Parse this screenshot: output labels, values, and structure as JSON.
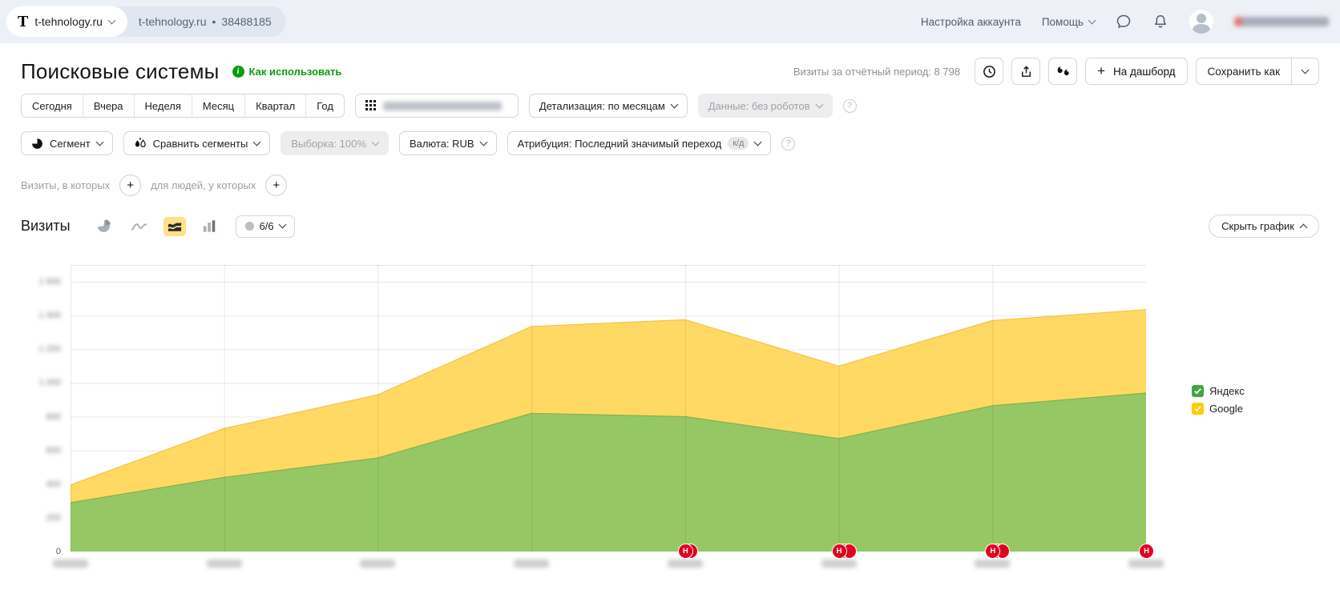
{
  "header": {
    "logo_letter": "T",
    "counter_name": "t-tehnology.ru",
    "counter_domain": "t-tehnology.ru",
    "separator": "•",
    "counter_id": "38488185",
    "account_settings": "Настройка аккаунта",
    "help": "Помощь",
    "user_email_blurred": true
  },
  "toolbar": {
    "title": "Поисковые системы",
    "how_to_use": "Как использовать",
    "visits_summary": "Визиты за отчётный период: 8 798",
    "to_dashboard": "На дашборд",
    "save_as": "Сохранить как"
  },
  "filters": {
    "periods": [
      "Сегодня",
      "Вчера",
      "Неделя",
      "Месяц",
      "Квартал",
      "Год"
    ],
    "date_range_blurred": true,
    "detalization": "Детализация: по месяцам",
    "data_mode": "Данные: без роботов",
    "segment": "Сегмент",
    "compare_segments": "Сравнить сегменты",
    "sampling": "Выборка: 100%",
    "currency": "Валюта: RUB",
    "attribution": "Атрибуция: Последний значимый переход",
    "attribution_badge": "к/д"
  },
  "query_builder": {
    "visits_label": "Визиты, в которых",
    "people_label": "для людей, у которых"
  },
  "chart_section": {
    "metric_title": "Визиты",
    "series_selector": "6/6",
    "hide_chart": "Скрыть график"
  },
  "icons": {
    "plus": "+",
    "question": "?"
  },
  "chart_data": {
    "type": "area",
    "stacked": true,
    "title": "Визиты",
    "num_points": 8,
    "x_labels_blurred": true,
    "series": [
      {
        "name": "Яндекс",
        "area_color": "#95c864",
        "edge_color": "#7fb24f",
        "legend_color": "#42a742",
        "values": [
          290,
          440,
          555,
          820,
          800,
          670,
          865,
          940
        ]
      },
      {
        "name": "Google",
        "area_color": "#ffd963",
        "edge_color": "#f0c54a",
        "legend_color": "#ffcc00",
        "values": [
          105,
          290,
          375,
          515,
          575,
          430,
          505,
          495
        ]
      }
    ],
    "ylim": [
      0,
      1600
    ],
    "ytick_step": 200,
    "grid": true,
    "legend_position": "right",
    "marker_letter": "H",
    "markers": [
      {
        "point_index": 4,
        "circles": 2
      },
      {
        "point_index": 5,
        "circles": 3
      },
      {
        "point_index": 6,
        "circles": 3
      },
      {
        "point_index": 7,
        "circles": 1
      }
    ]
  }
}
